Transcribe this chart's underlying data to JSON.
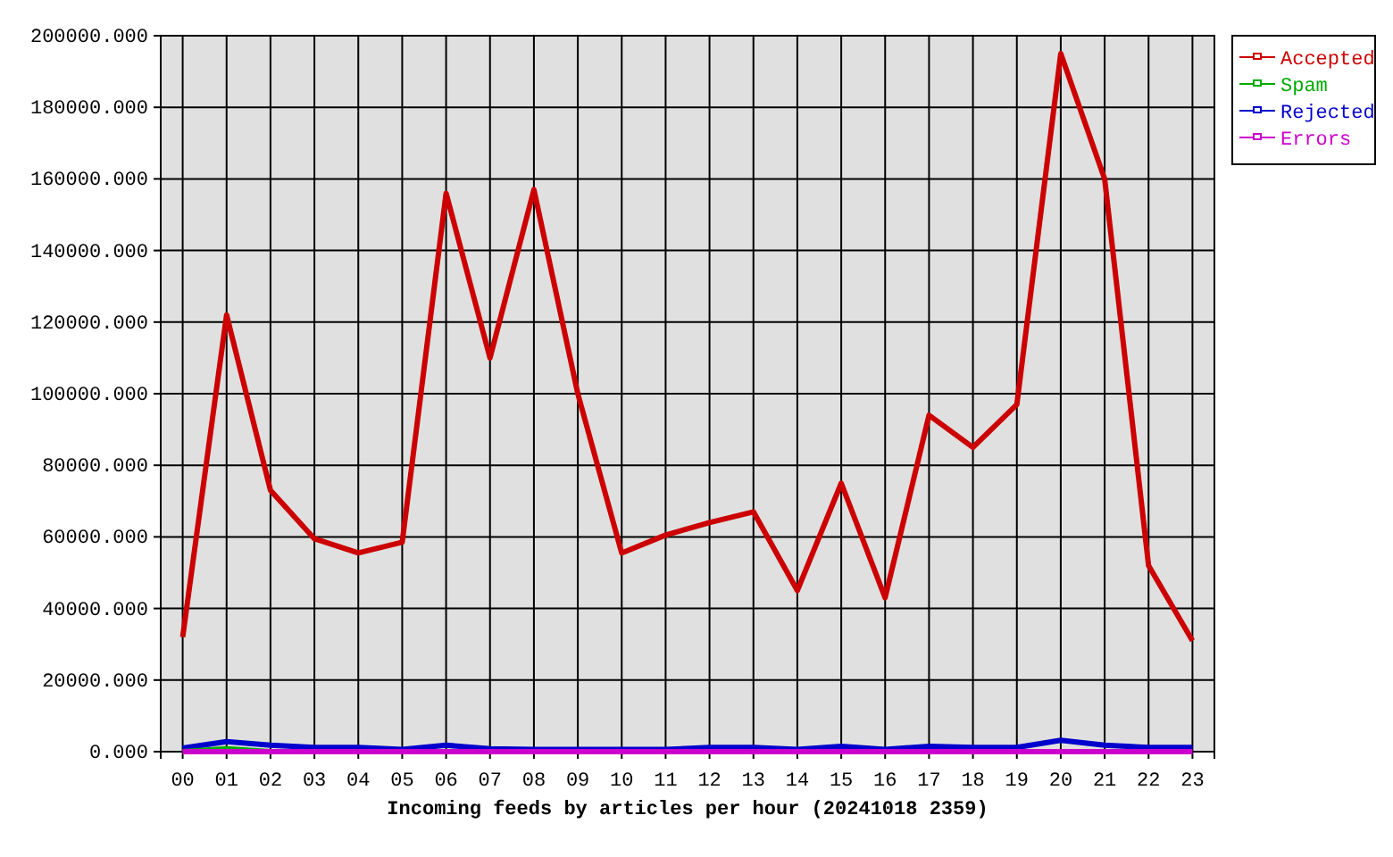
{
  "chart_data": {
    "type": "line",
    "xlabel": "Incoming feeds by articles per hour (20241018 2359)",
    "categories": [
      "00",
      "01",
      "02",
      "03",
      "04",
      "05",
      "06",
      "07",
      "08",
      "09",
      "10",
      "11",
      "12",
      "13",
      "14",
      "15",
      "16",
      "17",
      "18",
      "19",
      "20",
      "21",
      "22",
      "23"
    ],
    "series": [
      {
        "name": "Accepted",
        "color": "#cc0000",
        "values": [
          32000,
          122000,
          73000,
          59500,
          55500,
          58500,
          156000,
          110000,
          157000,
          100000,
          55500,
          60500,
          64000,
          67000,
          45000,
          75000,
          43000,
          94000,
          85000,
          97000,
          195000,
          160000,
          52000,
          31000
        ]
      },
      {
        "name": "Spam",
        "color": "#00aa00",
        "values": [
          0,
          800,
          0,
          null,
          null,
          null,
          null,
          null,
          null,
          null,
          null,
          null,
          null,
          null,
          null,
          null,
          null,
          null,
          null,
          null,
          null,
          null,
          null,
          null
        ]
      },
      {
        "name": "Rejected",
        "color": "#0000cc",
        "values": [
          1000,
          2800,
          1800,
          1200,
          1200,
          600,
          1800,
          800,
          600,
          600,
          600,
          600,
          1200,
          1200,
          600,
          1500,
          600,
          1500,
          1200,
          1200,
          3200,
          1800,
          1200,
          1200
        ]
      },
      {
        "name": "Errors",
        "color": "#cc00cc",
        "values": [
          0,
          0,
          0,
          0,
          0,
          0,
          0,
          0,
          0,
          0,
          0,
          0,
          0,
          0,
          0,
          0,
          0,
          0,
          0,
          0,
          0,
          0,
          0,
          0
        ]
      }
    ],
    "ylim": [
      0,
      200000
    ],
    "yticks": [
      {
        "value": 0,
        "label": "0.000"
      },
      {
        "value": 20000,
        "label": "20000.000"
      },
      {
        "value": 40000,
        "label": "40000.000"
      },
      {
        "value": 60000,
        "label": "60000.000"
      },
      {
        "value": 80000,
        "label": "80000.000"
      },
      {
        "value": 100000,
        "label": "100000.000"
      },
      {
        "value": 120000,
        "label": "120000.000"
      },
      {
        "value": 140000,
        "label": "140000.000"
      },
      {
        "value": 160000,
        "label": "160000.000"
      },
      {
        "value": 180000,
        "label": "180000.000"
      },
      {
        "value": 200000,
        "label": "200000.000"
      }
    ],
    "grid": true,
    "legend": "top right",
    "line_style": "solid"
  }
}
